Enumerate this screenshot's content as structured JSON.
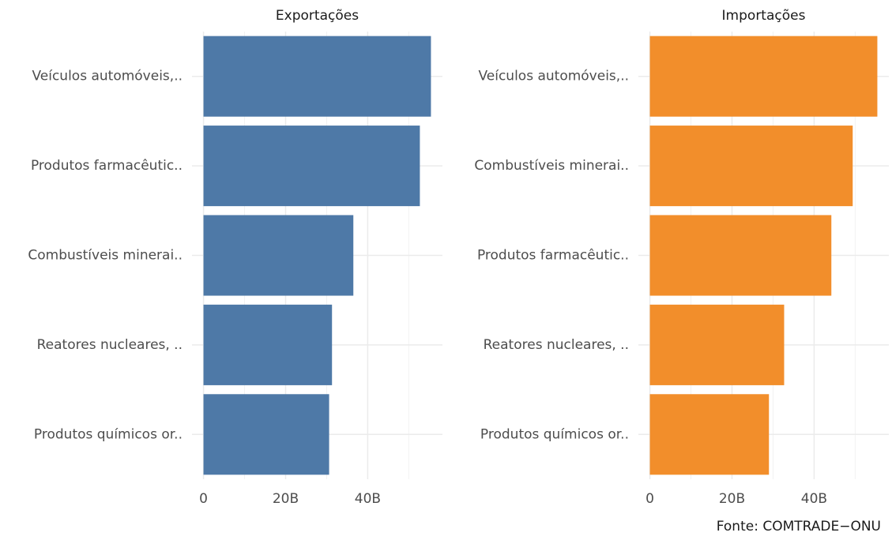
{
  "chart_data": [
    {
      "type": "bar",
      "orientation": "horizontal",
      "title": "Exportações",
      "categories": [
        "Veículos automóveis,..",
        "Produtos farmacêutic..",
        "Combustíveis minerai..",
        "Reatores nucleares, ..",
        "Produtos químicos or.."
      ],
      "values": [
        55.4,
        52.7,
        36.5,
        31.3,
        30.6
      ],
      "color": "#4e79a7",
      "xlim": [
        -2.8,
        58.2
      ],
      "xticks": [
        0,
        {
          "value": 20,
          "label": "20B"
        },
        {
          "value": 40,
          "label": "40B"
        }
      ],
      "minor_xticks": [
        10,
        30,
        50
      ],
      "grid": true
    },
    {
      "type": "bar",
      "orientation": "horizontal",
      "title": "Importações",
      "categories": [
        "Veículos automóveis,..",
        "Combustíveis minerai..",
        "Produtos farmacêutic..",
        "Reatores nucleares, ..",
        "Produtos químicos or.."
      ],
      "values": [
        55.4,
        49.4,
        44.2,
        32.7,
        29.0
      ],
      "color": "#f28e2b",
      "xlim": [
        -2.8,
        58.2
      ],
      "xticks": [
        0,
        {
          "value": 20,
          "label": "20B"
        },
        {
          "value": 40,
          "label": "40B"
        }
      ],
      "minor_xticks": [
        10,
        30,
        50
      ],
      "grid": true
    }
  ],
  "caption": "Fonte: COMTRADE−ONU"
}
